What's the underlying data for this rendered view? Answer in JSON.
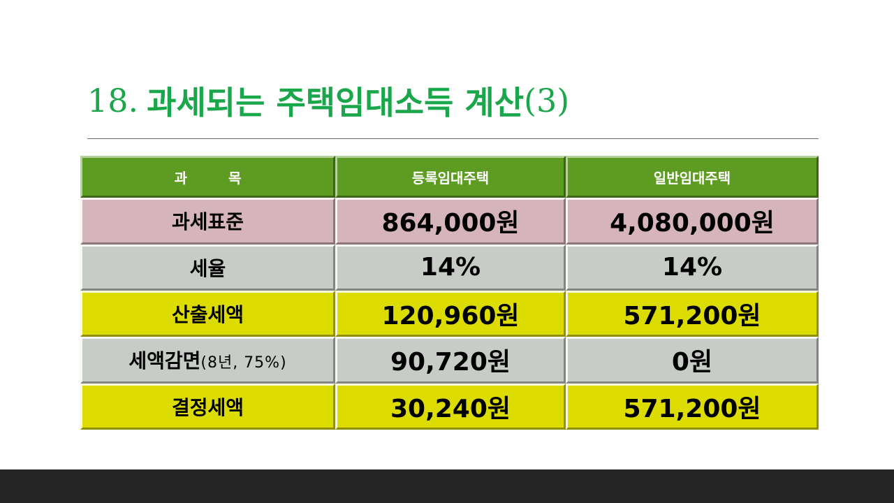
{
  "slide": {
    "title_number": "18.",
    "title_main": "과세되는 주택임대소득 계산",
    "title_suffix": "(3)"
  },
  "table": {
    "headers": [
      "과 목",
      "등록임대주택",
      "일반임대주택"
    ],
    "rows": [
      {
        "label": "과세표준",
        "label_note": "",
        "registered": "864,000원",
        "general": "4,080,000원",
        "color": "#d5b5bb"
      },
      {
        "label": "세율",
        "label_note": "",
        "registered": "14%",
        "general": "14%",
        "color": "#c8ccc6"
      },
      {
        "label": "산출세액",
        "label_note": "",
        "registered": "120,960원",
        "general": "571,200원",
        "color": "#dcdc00"
      },
      {
        "label": "세액감면",
        "label_note": "(8년, 75%)",
        "registered": "90,720원",
        "general": "0원",
        "color": "#c8ccc6"
      },
      {
        "label": "결정세액",
        "label_note": "",
        "registered": "30,240원",
        "general": "571,200원",
        "color": "#dcdc00"
      }
    ],
    "header_color": "#5e9b22"
  },
  "colors": {
    "title": "#1aa64a",
    "footer": "#262626"
  }
}
